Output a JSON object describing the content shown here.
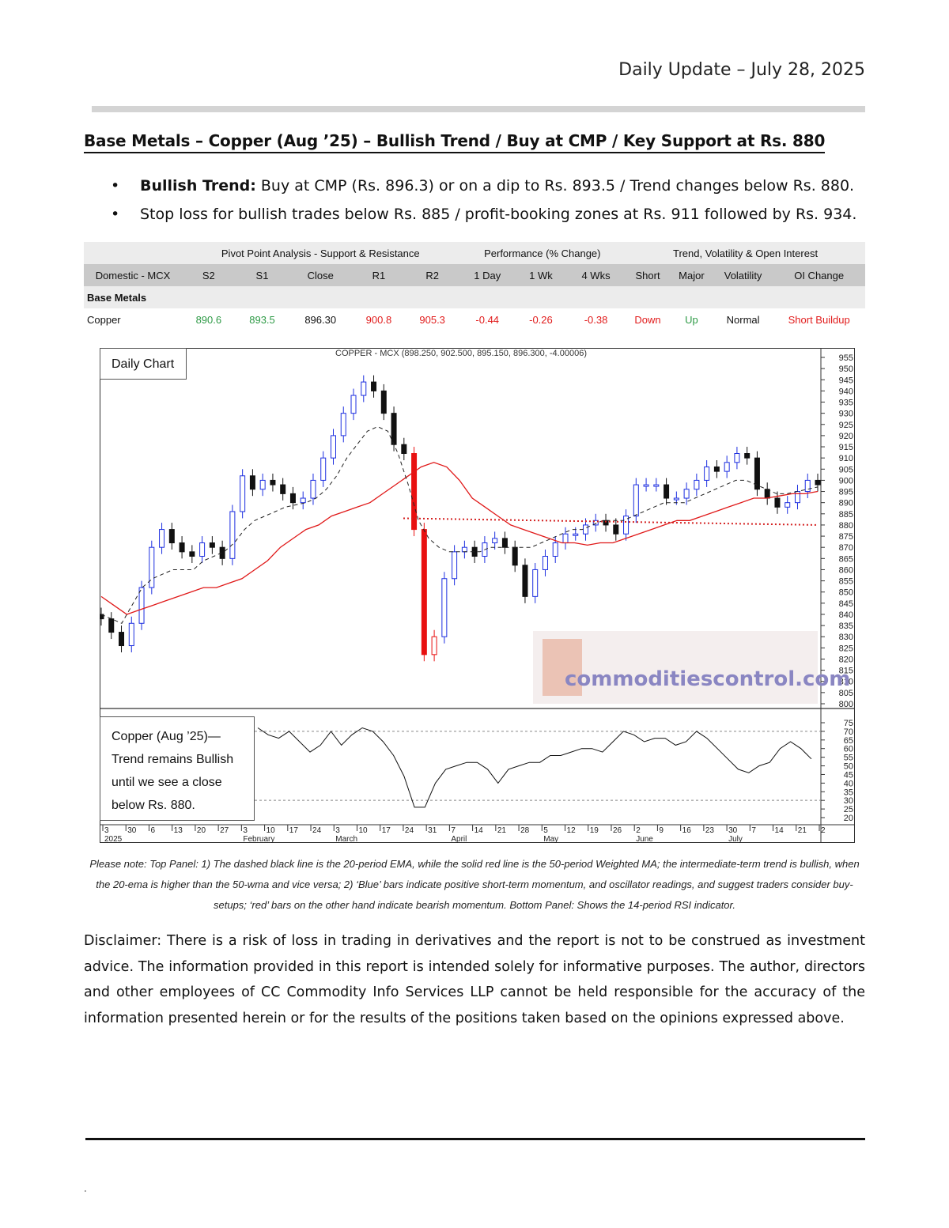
{
  "header": {
    "date": "Daily Update – July 28, 2025"
  },
  "title": "Base Metals – Copper (Aug ’25) – Bullish Trend / Buy at CMP / Key Support at Rs. 880",
  "bullets": [
    {
      "bold": "Bullish Trend:",
      "text": " Buy at CMP (Rs. 896.3) or on a dip to Rs. 893.5 / Trend changes below Rs. 880."
    },
    {
      "bold": "",
      "text": "Stop loss for bullish trades below Rs. 885 / profit-booking zones at Rs. 911 followed by Rs. 934."
    }
  ],
  "table": {
    "groups": [
      "Pivot Point Analysis - Support & Resistance",
      "Performance (% Change)",
      "Trend, Volatility & Open Interest"
    ],
    "columns": [
      "Domestic - MCX",
      "S2",
      "S1",
      "Close",
      "R1",
      "R2",
      "1 Day",
      "1 Wk",
      "4 Wks",
      "Short",
      "Major",
      "Volatility",
      "OI Change"
    ],
    "section": "Base Metals",
    "row": [
      "Copper",
      "890.6",
      "893.5",
      "896.30",
      "900.8",
      "905.3",
      "-0.44",
      "-0.26",
      "-0.38",
      "Down",
      "Up",
      "Normal",
      "Short Buildup"
    ],
    "row_colors": [
      "#111111",
      "#2e9a46",
      "#2e9a46",
      "#111111",
      "#e11c1c",
      "#e11c1c",
      "#e11c1c",
      "#e11c1c",
      "#e11c1c",
      "#e11c1c",
      "#2e9a46",
      "#111111",
      "#e11c1c"
    ]
  },
  "chart": {
    "daily_label": "Daily Chart",
    "header": "COPPER - MCX (898.250, 902.500, 895.150, 896.300, -4.00006)",
    "watermark": "commoditiescontrol.com",
    "note": [
      "Copper (Aug ’25)—",
      "Trend remains Bullish",
      "until we see a close",
      "below Rs. 880."
    ],
    "price_ticks": [
      "955",
      "950",
      "945",
      "940",
      "935",
      "930",
      "925",
      "920",
      "915",
      "910",
      "905",
      "900",
      "895",
      "890",
      "885",
      "880",
      "875",
      "870",
      "865",
      "860",
      "855",
      "850",
      "845",
      "840",
      "835",
      "830",
      "825",
      "820",
      "815",
      "810",
      "805",
      "800"
    ],
    "rsi_ticks": [
      "75",
      "70",
      "65",
      "60",
      "55",
      "50",
      "45",
      "40",
      "35",
      "30",
      "25",
      "20"
    ],
    "date_ticks": [
      "3",
      "30",
      "6",
      "13",
      "20",
      "27",
      "3",
      "10",
      "17",
      "24",
      "3",
      "10",
      "17",
      "24",
      "31",
      "7",
      "14",
      "21",
      "28",
      "5",
      "12",
      "19",
      "26",
      "2",
      "9",
      "16",
      "23",
      "30",
      "7",
      "14",
      "21",
      "2"
    ],
    "month_labels": [
      "2025",
      "February",
      "March",
      "April",
      "May",
      "June",
      "July"
    ]
  },
  "chart_data": {
    "type": "candlestick",
    "title": "COPPER - MCX (898.250, 902.500, 895.150, 896.300, -4.00006)",
    "x_range": [
      "2025-01-03",
      "2025-07-28"
    ],
    "ylim": [
      800,
      955
    ],
    "rsi_ylim": [
      20,
      75
    ],
    "key_support": 880,
    "close_series": [
      838,
      832,
      826,
      836,
      852,
      870,
      878,
      872,
      868,
      866,
      872,
      870,
      865,
      886,
      902,
      896,
      900,
      898,
      894,
      890,
      892,
      900,
      910,
      920,
      930,
      938,
      944,
      940,
      930,
      916,
      912,
      878,
      822,
      830,
      856,
      868,
      870,
      866,
      872,
      874,
      870,
      862,
      848,
      860,
      866,
      872,
      876,
      876,
      880,
      882,
      880,
      876,
      884,
      898,
      898,
      898,
      892,
      892,
      896,
      900,
      906,
      904,
      908,
      912,
      910,
      896,
      892,
      888,
      890,
      895,
      900,
      898
    ],
    "ema20_series": [
      840,
      838,
      836,
      844,
      852,
      856,
      858,
      860,
      860,
      860,
      864,
      866,
      868,
      872,
      878,
      882,
      884,
      886,
      888,
      889,
      890,
      892,
      896,
      902,
      910,
      916,
      922,
      924,
      922,
      912,
      898,
      882,
      874,
      870,
      868,
      868,
      868,
      868,
      870,
      870,
      870,
      870,
      870,
      872,
      874,
      876,
      878,
      878,
      880,
      882,
      882,
      882,
      884,
      886,
      888,
      890,
      890,
      890,
      892,
      894,
      896,
      898,
      900,
      900,
      898,
      896,
      894,
      894,
      895,
      896,
      897
    ],
    "wma50_series": [
      848,
      844,
      840,
      842,
      844,
      846,
      848,
      850,
      852,
      852,
      854,
      856,
      860,
      864,
      870,
      874,
      878,
      880,
      884,
      886,
      888,
      890,
      894,
      898,
      902,
      906,
      908,
      906,
      900,
      892,
      888,
      884,
      880,
      878,
      876,
      874,
      872,
      872,
      871,
      872,
      872,
      874,
      876,
      878,
      880,
      882,
      882,
      884,
      886,
      888,
      890,
      892,
      892,
      893,
      894,
      894,
      895
    ],
    "rsi_series": [
      72,
      68,
      66,
      70,
      64,
      58,
      62,
      70,
      62,
      68,
      72,
      70,
      64,
      56,
      44,
      26,
      26,
      40,
      48,
      50,
      52,
      52,
      48,
      40,
      48,
      50,
      52,
      52,
      56,
      56,
      58,
      60,
      60,
      58,
      64,
      70,
      68,
      64,
      66,
      66,
      62,
      64,
      70,
      66,
      60,
      54,
      48,
      46,
      50,
      52,
      60,
      64,
      60,
      54
    ]
  },
  "caption": "Please note: Top Panel: 1) The dashed black line is the 20-period EMA, while the solid red line is the 50-period Weighted MA; the intermediate-term trend is bullish, when the 20-ema is higher than the 50-wma and vice versa; 2)  ‘Blue’  bars indicate positive short-term momentum, and oscillator readings, and suggest traders consider buy-setups;  ‘red’  bars on the other hand indicate bearish momentum. Bottom Panel: Shows the 14-period RSI indicator.",
  "disclaimer": "Disclaimer: There is a risk of loss in trading in derivatives and the report is not to be construed as investment advice. The information provided in this report is intended solely for informative purposes. The author, directors and other employees of CC Commodity Info Services LLP cannot be held responsible for the accuracy of the information presented herein or for the results of the positions taken based on the opinions expressed above.",
  "footer_mark": ".",
  "colors": {
    "blue_bar": "#1c2ee0",
    "red_bar": "#e81010",
    "black_bar": "#111111",
    "ma_red": "#e01818",
    "support_line": "#d42020",
    "rule_grey": "#d4d4d4"
  }
}
